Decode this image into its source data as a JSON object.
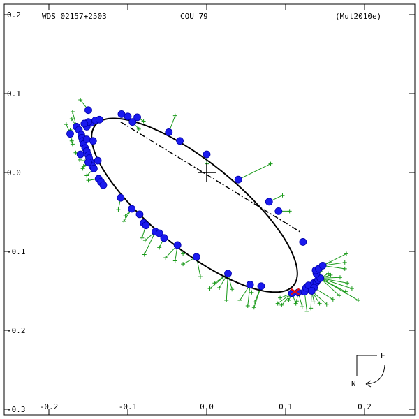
{
  "header": {
    "wds_id": "WDS 02157+2503",
    "discoverer": "COU  79",
    "reference": "(Mut2010e)"
  },
  "compass": {
    "east_label": "E",
    "north_label": "N"
  },
  "chart_data": {
    "type": "scatter",
    "title": "",
    "xlabel": "",
    "ylabel": "",
    "xlim": [
      -0.26,
      0.26
    ],
    "ylim": [
      -0.3,
      0.2
    ],
    "x_ticks": [
      {
        "v": -0.2,
        "label": "-0.2"
      },
      {
        "v": -0.1,
        "label": "-0.1"
      },
      {
        "v": 0.0,
        "label": "0.0"
      },
      {
        "v": 0.1,
        "label": "0.1"
      },
      {
        "v": 0.2,
        "label": "0.2"
      }
    ],
    "y_ticks": [
      {
        "v": 0.2,
        "label": "0.2"
      },
      {
        "v": 0.1,
        "label": "0.1"
      },
      {
        "v": 0.0,
        "label": "0.0"
      },
      {
        "v": -0.1,
        "label": "-0.1"
      },
      {
        "v": -0.2,
        "label": "-0.2"
      },
      {
        "v": -0.3,
        "label": "-0.3"
      }
    ],
    "grid": false,
    "primary": {
      "x": 0.0,
      "y": 0.0
    },
    "orbit": {
      "center": [
        -0.0155,
        -0.0415
      ],
      "semi_axes": [
        0.1615,
        0.0551
      ],
      "angle_deg": -38.9
    },
    "line_of_nodes": [
      [
        -0.109,
        0.064
      ],
      [
        0.118,
        -0.075
      ]
    ],
    "observations": [
      [
        -0.173,
        0.049
      ],
      [
        -0.165,
        0.058
      ],
      [
        -0.162,
        0.054
      ],
      [
        -0.159,
        0.048
      ],
      [
        -0.158,
        0.044
      ],
      [
        -0.157,
        0.04
      ],
      [
        -0.156,
        0.036
      ],
      [
        -0.154,
        0.031
      ],
      [
        -0.152,
        0.027
      ],
      [
        -0.15,
        0.022
      ],
      [
        -0.149,
        0.018
      ],
      [
        -0.147,
        0.013
      ],
      [
        -0.145,
        0.008
      ],
      [
        -0.143,
        0.005
      ],
      [
        -0.16,
        0.023
      ],
      [
        -0.138,
        0.015
      ],
      [
        -0.152,
        0.058
      ],
      [
        -0.146,
        0.063
      ],
      [
        -0.141,
        0.066
      ],
      [
        -0.136,
        0.067
      ],
      [
        -0.15,
        0.064
      ],
      [
        -0.155,
        0.062
      ],
      [
        -0.15,
        0.079
      ],
      [
        -0.15,
        0.013
      ],
      [
        -0.152,
        0.042
      ],
      [
        -0.144,
        0.04
      ],
      [
        -0.137,
        -0.008
      ],
      [
        -0.134,
        -0.012
      ],
      [
        -0.131,
        -0.016
      ],
      [
        -0.108,
        0.074
      ],
      [
        -0.1,
        0.071
      ],
      [
        -0.094,
        0.064
      ],
      [
        -0.088,
        0.07
      ],
      [
        -0.048,
        0.051
      ],
      [
        -0.034,
        0.04
      ],
      [
        0.0,
        0.023
      ],
      [
        0.04,
        -0.009
      ],
      [
        0.079,
        -0.037
      ],
      [
        0.091,
        -0.049
      ],
      [
        0.122,
        -0.088
      ],
      [
        -0.109,
        -0.032
      ],
      [
        -0.095,
        -0.046
      ],
      [
        -0.085,
        -0.053
      ],
      [
        -0.08,
        -0.064
      ],
      [
        -0.077,
        -0.067
      ],
      [
        -0.065,
        -0.075
      ],
      [
        -0.06,
        -0.077
      ],
      [
        -0.054,
        -0.083
      ],
      [
        -0.037,
        -0.092
      ],
      [
        -0.013,
        -0.107
      ],
      [
        0.027,
        -0.128
      ],
      [
        0.055,
        -0.142
      ],
      [
        0.069,
        -0.144
      ],
      [
        0.108,
        -0.153
      ],
      [
        0.116,
        -0.152
      ],
      [
        0.124,
        -0.151
      ],
      [
        0.126,
        -0.146
      ],
      [
        0.129,
        -0.143
      ],
      [
        0.136,
        -0.14
      ],
      [
        0.139,
        -0.139
      ],
      [
        0.141,
        -0.136
      ],
      [
        0.144,
        -0.134
      ],
      [
        0.139,
        -0.128
      ],
      [
        0.138,
        -0.124
      ],
      [
        0.142,
        -0.122
      ],
      [
        0.147,
        -0.118
      ],
      [
        0.136,
        -0.146
      ],
      [
        0.133,
        -0.15
      ]
    ],
    "residual_endpoints": [
      [
        -0.16,
        0.092
      ],
      [
        -0.17,
        0.077
      ],
      [
        -0.171,
        0.068
      ],
      [
        -0.178,
        0.061
      ],
      [
        -0.173,
        0.054
      ],
      [
        -0.171,
        0.04
      ],
      [
        -0.17,
        0.036
      ],
      [
        -0.166,
        0.025
      ],
      [
        -0.161,
        0.016
      ],
      [
        -0.16,
        0.022
      ],
      [
        -0.156,
        0.008
      ],
      [
        -0.155,
        0.015
      ],
      [
        -0.157,
        0.005
      ],
      [
        -0.152,
        -0.004
      ],
      [
        -0.15,
        -0.01
      ],
      [
        -0.16,
        0.055
      ],
      [
        -0.154,
        0.045
      ],
      [
        -0.155,
        0.032
      ],
      [
        -0.112,
        -0.047
      ],
      [
        -0.103,
        -0.055
      ],
      [
        -0.105,
        -0.062
      ],
      [
        -0.082,
        -0.083
      ],
      [
        -0.078,
        -0.086
      ],
      [
        -0.06,
        -0.095
      ],
      [
        -0.04,
        -0.112
      ],
      [
        -0.03,
        -0.103
      ],
      [
        -0.015,
        -0.107
      ],
      [
        -0.008,
        -0.132
      ],
      [
        0.01,
        -0.14
      ],
      [
        -0.079,
        -0.104
      ],
      [
        -0.052,
        -0.108
      ],
      [
        -0.03,
        -0.116
      ],
      [
        0.004,
        -0.147
      ],
      [
        0.016,
        -0.146
      ],
      [
        0.025,
        -0.162
      ],
      [
        0.032,
        -0.148
      ],
      [
        0.042,
        -0.162
      ],
      [
        0.052,
        -0.169
      ],
      [
        0.06,
        -0.171
      ],
      [
        0.057,
        -0.152
      ],
      [
        0.061,
        -0.164
      ],
      [
        0.09,
        -0.166
      ],
      [
        0.093,
        -0.159
      ],
      [
        0.095,
        -0.168
      ],
      [
        0.104,
        -0.162
      ],
      [
        0.114,
        -0.163
      ],
      [
        0.113,
        -0.166
      ],
      [
        0.121,
        -0.17
      ],
      [
        0.127,
        -0.176
      ],
      [
        0.132,
        -0.172
      ],
      [
        0.136,
        -0.164
      ],
      [
        0.143,
        -0.166
      ],
      [
        0.152,
        -0.167
      ],
      [
        0.16,
        -0.161
      ],
      [
        0.168,
        -0.156
      ],
      [
        0.176,
        -0.151
      ],
      [
        0.192,
        -0.162
      ],
      [
        0.184,
        -0.147
      ],
      [
        0.178,
        -0.14
      ],
      [
        0.169,
        -0.133
      ],
      [
        0.157,
        -0.13
      ],
      [
        0.154,
        -0.128
      ],
      [
        0.144,
        -0.125
      ],
      [
        0.156,
        -0.114
      ],
      [
        0.175,
        -0.122
      ],
      [
        0.175,
        -0.114
      ],
      [
        0.177,
        -0.103
      ],
      [
        0.081,
        0.011
      ],
      [
        0.096,
        -0.029
      ],
      [
        0.105,
        -0.049
      ],
      [
        0.0,
        0.011
      ],
      [
        -0.04,
        0.072
      ],
      [
        -0.08,
        0.065
      ],
      [
        -0.086,
        0.055
      ]
    ],
    "marked_point": [
      0.112,
      -0.151
    ]
  }
}
